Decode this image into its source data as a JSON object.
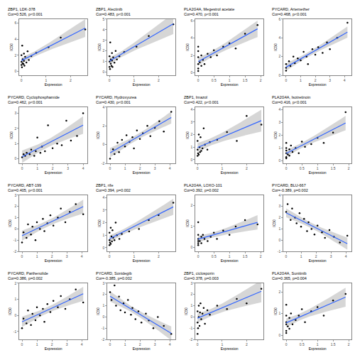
{
  "chart_data": [
    {
      "type": "scatter",
      "title": "ZBP1, LDK-378",
      "subtitle": "Cor=0.526, p<0.001",
      "xlabel": "Expression",
      "ylabel": "IC50",
      "color": "#000000",
      "marker": "circle",
      "grid": false,
      "x": [
        0,
        0,
        0,
        0.02,
        0.03,
        0.05,
        0.05,
        0.08,
        0.1,
        0.1,
        0.12,
        0.15,
        0.2,
        0.25,
        0.3,
        0.4,
        0.6,
        1.1,
        1.6,
        2.6
      ],
      "values": [
        0.8,
        1.2,
        2.0,
        0.5,
        3.2,
        1.0,
        1.5,
        0.9,
        2.2,
        1.3,
        0.7,
        1.8,
        1.1,
        2.5,
        1.4,
        1.9,
        2.3,
        3.0,
        4.2,
        5.2
      ],
      "xlim": [
        -0.1,
        2.7
      ],
      "xticks": [
        0,
        1,
        2
      ],
      "ylim": [
        -0.5,
        6.5
      ],
      "yticks": [
        0,
        2,
        4,
        6
      ]
    },
    {
      "type": "scatter",
      "title": "ZBP1, Alectinib",
      "subtitle": "Cor=0.483, p<0.001",
      "xlabel": "Expression",
      "ylabel": "IC50",
      "color": "#000000",
      "marker": "circle",
      "grid": false,
      "x": [
        0,
        0,
        0,
        0.02,
        0.03,
        0.05,
        0.05,
        0.08,
        0.1,
        0.1,
        0.12,
        0.15,
        0.2,
        0.25,
        0.3,
        0.4,
        0.6,
        1.1,
        1.6,
        2.6
      ],
      "values": [
        0.5,
        1.0,
        1.5,
        0.3,
        2.8,
        0.8,
        1.2,
        0.6,
        1.8,
        1.1,
        0.5,
        1.4,
        0.9,
        2.0,
        1.2,
        1.5,
        1.9,
        2.4,
        3.4,
        4.5
      ],
      "xlim": [
        -0.1,
        2.7
      ],
      "xticks": [
        0,
        1,
        2
      ],
      "ylim": [
        -0.3,
        5
      ],
      "yticks": [
        0,
        1,
        2,
        3,
        4,
        5
      ]
    },
    {
      "type": "scatter",
      "title": "PLA2G4A, Megestrol acetate",
      "subtitle": "Cor=0.470, p<0.001",
      "xlabel": "Expression",
      "ylabel": "IC50",
      "color": "#000000",
      "marker": "circle",
      "grid": false,
      "x": [
        0,
        0,
        0,
        0,
        0,
        0,
        0.05,
        0.1,
        0.1,
        0.15,
        0.2,
        0.3,
        0.4,
        0.5,
        0.6,
        0.8,
        1.0,
        1.2,
        1.5,
        1.9
      ],
      "values": [
        0.5,
        1.0,
        1.8,
        2.5,
        3.0,
        0.2,
        1.2,
        0.8,
        2.0,
        1.5,
        1.0,
        2.2,
        1.8,
        2.6,
        2.0,
        3.0,
        3.4,
        2.8,
        4.5,
        5.5
      ],
      "xlim": [
        -0.1,
        2.1
      ],
      "xticks": [
        0,
        0.5,
        1,
        1.5,
        2
      ],
      "ylim": [
        -0.3,
        6.2
      ],
      "yticks": [
        0,
        2,
        4,
        6
      ]
    },
    {
      "type": "scatter",
      "title": "PYCARD, Artemether",
      "subtitle": "Cor=0.468, p<0.001",
      "xlabel": "Expression",
      "ylabel": "IC50",
      "color": "#000000",
      "marker": "circle",
      "grid": false,
      "x": [
        0,
        0,
        0,
        0.2,
        0.3,
        0.5,
        0.6,
        0.8,
        1.0,
        1.2,
        1.4,
        1.5,
        1.8,
        2.0,
        2.2,
        2.5,
        2.8,
        3.0,
        3.5,
        4.2
      ],
      "values": [
        0.5,
        1.2,
        0.8,
        1.5,
        1.0,
        2.0,
        1.3,
        1.8,
        1.6,
        2.5,
        2.0,
        1.2,
        2.8,
        2.2,
        3.0,
        2.4,
        3.5,
        2.8,
        4.0,
        5.6
      ],
      "xlim": [
        -0.2,
        4.5
      ],
      "xticks": [
        0,
        1,
        2,
        3,
        4
      ],
      "ylim": [
        0,
        6
      ],
      "yticks": [
        0,
        2,
        4,
        6
      ]
    },
    {
      "type": "scatter",
      "title": "PYCARD, Cyclophosphamide",
      "subtitle": "Cor=0.462, p<0.001",
      "xlabel": "Expression",
      "ylabel": "IC50",
      "color": "#000000",
      "marker": "circle",
      "grid": false,
      "x": [
        0,
        0.1,
        0.2,
        0.3,
        0.5,
        0.6,
        0.8,
        0.9,
        1.0,
        1.2,
        1.3,
        1.5,
        1.7,
        2.0,
        2.3,
        2.6,
        2.9,
        3.2,
        3.6,
        4.0
      ],
      "values": [
        0.1,
        0.3,
        0.2,
        0.4,
        0.3,
        0.6,
        0.2,
        0.5,
        1.4,
        0.4,
        0.8,
        0.5,
        2.2,
        0.7,
        1.0,
        0.9,
        2.5,
        1.2,
        1.5,
        3.0
      ],
      "xlim": [
        -0.2,
        4.3
      ],
      "xticks": [
        0,
        1,
        2,
        3,
        4
      ],
      "ylim": [
        -0.3,
        3.4
      ],
      "yticks": [
        0,
        1,
        2,
        3
      ]
    },
    {
      "type": "scatter",
      "title": "PYCARD, Hydroxyurea",
      "subtitle": "Cor=0.430, p<0.001",
      "xlabel": "Expression",
      "ylabel": "IC50",
      "color": "#000000",
      "marker": "circle",
      "grid": false,
      "x": [
        0,
        0.2,
        0.3,
        0.5,
        0.6,
        0.8,
        1.0,
        1.1,
        1.3,
        1.5,
        1.6,
        1.8,
        2.0,
        2.2,
        2.5,
        2.7,
        3.0,
        3.3,
        3.6,
        4.1
      ],
      "values": [
        -1.5,
        -0.5,
        -1.0,
        0.2,
        -0.8,
        0.5,
        -0.2,
        1.0,
        0.3,
        0.8,
        -0.4,
        1.5,
        0.6,
        1.2,
        2.0,
        0.9,
        1.8,
        2.5,
        1.4,
        3.5
      ],
      "xlim": [
        -0.2,
        4.4
      ],
      "xticks": [
        0,
        1,
        2,
        3,
        4
      ],
      "ylim": [
        -2,
        4
      ],
      "yticks": [
        -2,
        0,
        2,
        4
      ]
    },
    {
      "type": "scatter",
      "title": "ZBP1, Imazol",
      "subtitle": "Cor=0.422, p<0.001",
      "xlabel": "Expression",
      "ylabel": "IC50",
      "color": "#000000",
      "marker": "circle",
      "grid": false,
      "x": [
        0,
        0,
        0,
        0.02,
        0.05,
        0.05,
        0.08,
        0.1,
        0.12,
        0.15,
        0.2,
        0.25,
        0.3,
        0.4,
        0.5,
        0.8,
        1.2,
        1.6,
        2.0,
        2.6
      ],
      "values": [
        0.3,
        0.8,
        1.5,
        0.5,
        2.0,
        0.4,
        1.0,
        0.6,
        1.8,
        0.7,
        0.9,
        2.5,
        1.2,
        0.8,
        1.4,
        1.6,
        2.2,
        1.5,
        3.5,
        2.8
      ],
      "xlim": [
        -0.1,
        2.7
      ],
      "xticks": [
        0,
        1,
        2
      ],
      "ylim": [
        -0.3,
        4.2
      ],
      "yticks": [
        0,
        1,
        2,
        3,
        4
      ]
    },
    {
      "type": "scatter",
      "title": "PLA2G4A, Isotretinoin",
      "subtitle": "Cor=0.416, p<0.001",
      "xlabel": "Expression",
      "ylabel": "IC50",
      "color": "#000000",
      "marker": "circle",
      "grid": false,
      "x": [
        0,
        0,
        0,
        0,
        0,
        0,
        0.05,
        0.1,
        0.1,
        0.15,
        0.2,
        0.3,
        0.4,
        0.5,
        0.6,
        0.8,
        1.0,
        1.2,
        1.5,
        1.9
      ],
      "values": [
        0.3,
        0.6,
        1.0,
        1.4,
        0.2,
        0.8,
        0.5,
        0.9,
        0.4,
        1.2,
        0.7,
        1.0,
        0.6,
        1.5,
        1.1,
        1.3,
        1.8,
        1.4,
        2.2,
        3.8
      ],
      "xlim": [
        -0.1,
        2.1
      ],
      "xticks": [
        0,
        0.5,
        1,
        1.5,
        2
      ],
      "ylim": [
        -0.2,
        4.2
      ],
      "yticks": [
        0,
        1,
        2,
        3,
        4
      ]
    },
    {
      "type": "scatter",
      "title": "PYCARD, ABT-199",
      "subtitle": "Cor=0.405, p<0.001",
      "xlabel": "Expression",
      "ylabel": "IC50",
      "color": "#000000",
      "marker": "circle",
      "grid": false,
      "x": [
        0,
        0.1,
        0.3,
        0.4,
        0.6,
        0.7,
        0.9,
        1.0,
        1.2,
        1.4,
        1.5,
        1.7,
        1.9,
        2.1,
        2.4,
        2.6,
        2.9,
        3.2,
        3.6,
        4.1
      ],
      "values": [
        -1.2,
        -0.3,
        -0.8,
        0.4,
        -0.5,
        0.2,
        -1.0,
        0.6,
        0.0,
        0.9,
        -0.2,
        0.5,
        1.2,
        0.3,
        1.0,
        1.8,
        0.6,
        1.5,
        2.2,
        1.3
      ],
      "xlim": [
        -0.2,
        4.4
      ],
      "xticks": [
        0,
        1,
        2,
        3,
        4
      ],
      "ylim": [
        -2,
        3
      ],
      "yticks": [
        -2,
        -1,
        0,
        1,
        2,
        3
      ]
    },
    {
      "type": "scatter",
      "title": "ZBP1, rife",
      "subtitle": "Cor=0.394, p=0.002",
      "xlabel": "Expression",
      "ylabel": "IC50",
      "color": "#000000",
      "marker": "circle",
      "grid": false,
      "x": [
        0,
        0,
        0,
        0.02,
        0.05,
        0.05,
        0.08,
        0.1,
        0.12,
        0.15,
        0.2,
        0.25,
        0.3,
        0.4,
        0.5,
        0.8,
        1.2,
        1.6,
        2.0,
        2.6
      ],
      "values": [
        0.2,
        0.6,
        1.2,
        0.4,
        1.6,
        0.3,
        0.9,
        0.5,
        1.4,
        0.8,
        0.6,
        2.0,
        1.0,
        0.7,
        1.1,
        1.3,
        1.5,
        2.2,
        2.6,
        3.6
      ],
      "xlim": [
        -0.1,
        2.7
      ],
      "xticks": [
        0,
        1,
        2
      ],
      "ylim": [
        -0.3,
        4.2
      ],
      "yticks": [
        0,
        1,
        2,
        3,
        4
      ]
    },
    {
      "type": "scatter",
      "title": "PLA2G4A, LOXO-101",
      "subtitle": "Cor=0.392, p=0.002",
      "xlabel": "Expression",
      "ylabel": "IC50",
      "color": "#000000",
      "marker": "circle",
      "grid": false,
      "x": [
        0,
        0,
        0,
        0,
        0,
        0,
        0.05,
        0.1,
        0.1,
        0.15,
        0.2,
        0.3,
        0.4,
        0.5,
        0.6,
        0.8,
        1.0,
        1.2,
        1.5,
        1.9
      ],
      "values": [
        0.1,
        0.3,
        0.6,
        1.2,
        0.2,
        0.4,
        0.3,
        0.5,
        0.2,
        0.6,
        0.4,
        0.3,
        0.5,
        0.7,
        0.4,
        0.8,
        0.6,
        1.0,
        1.3,
        1.1
      ],
      "xlim": [
        -0.1,
        2.1
      ],
      "xticks": [
        0,
        0.5,
        1,
        1.5,
        2
      ],
      "ylim": [
        -0.2,
        2.5
      ],
      "yticks": [
        0,
        1,
        2
      ]
    },
    {
      "type": "scatter",
      "title": "PYCARD, BLU-667",
      "subtitle": "Cor=-0.389, p=0.002",
      "xlabel": "Expression",
      "ylabel": "IC50",
      "color": "#000000",
      "marker": "circle",
      "grid": false,
      "x": [
        0,
        0.1,
        0.3,
        0.4,
        0.6,
        0.7,
        0.9,
        1.0,
        1.2,
        1.4,
        1.5,
        1.7,
        1.9,
        2.1,
        2.4,
        2.6,
        2.9,
        3.2,
        3.6,
        4.1
      ],
      "values": [
        2.5,
        3.2,
        1.8,
        2.8,
        2.0,
        1.5,
        2.4,
        1.2,
        1.9,
        0.8,
        1.6,
        1.0,
        0.5,
        1.3,
        0.7,
        0.2,
        0.9,
        0.3,
        -0.2,
        0.4
      ],
      "xlim": [
        -0.2,
        4.4
      ],
      "xticks": [
        0,
        1,
        2,
        3,
        4
      ],
      "ylim": [
        -1,
        4
      ],
      "yticks": [
        -1,
        0,
        1,
        2,
        3,
        4
      ]
    },
    {
      "type": "scatter",
      "title": "PYCARD, Parthenolide",
      "subtitle": "Cor=0.386, p=0.002",
      "xlabel": "Expression",
      "ylabel": "IC50",
      "color": "#000000",
      "marker": "circle",
      "grid": false,
      "x": [
        0,
        0.1,
        0.3,
        0.4,
        0.6,
        0.7,
        0.9,
        1.0,
        1.2,
        1.4,
        1.5,
        1.7,
        1.9,
        2.1,
        2.4,
        2.6,
        2.9,
        3.2,
        3.6,
        4.1
      ],
      "values": [
        -0.8,
        -0.2,
        -0.5,
        0.3,
        -0.6,
        0.1,
        -0.3,
        0.5,
        0.0,
        0.4,
        -0.4,
        0.7,
        0.2,
        0.9,
        0.5,
        1.2,
        0.4,
        1.0,
        1.6,
        0.8
      ],
      "xlim": [
        -0.2,
        4.4
      ],
      "xticks": [
        0,
        1,
        2,
        3,
        4
      ],
      "ylim": [
        -1.5,
        2
      ],
      "yticks": [
        -1,
        0,
        1,
        2
      ]
    },
    {
      "type": "scatter",
      "title": "PYCARD, Sonidegib",
      "subtitle": "Cor=-0.385, p=0.002",
      "xlabel": "Expression",
      "ylabel": "IC50",
      "color": "#000000",
      "marker": "circle",
      "grid": false,
      "x": [
        0,
        0.1,
        0.3,
        0.4,
        0.6,
        0.7,
        0.9,
        1.0,
        1.2,
        1.4,
        1.5,
        1.7,
        1.9,
        2.1,
        2.4,
        2.6,
        2.9,
        3.2,
        3.6,
        4.1
      ],
      "values": [
        2.2,
        1.5,
        2.8,
        1.0,
        1.8,
        0.6,
        1.2,
        0.4,
        1.5,
        0.2,
        0.8,
        -0.2,
        0.5,
        -0.5,
        0.3,
        -0.3,
        -1.0,
        0.0,
        -0.8,
        -1.5
      ],
      "xlim": [
        -0.2,
        4.4
      ],
      "xticks": [
        0,
        1,
        2,
        3,
        4
      ],
      "ylim": [
        -2,
        3
      ],
      "yticks": [
        -2,
        -1,
        0,
        1,
        2,
        3
      ]
    },
    {
      "type": "scatter",
      "title": "ZBP1, ciclosporin",
      "subtitle": "Cor=0.378, p=0.003",
      "xlabel": "Expression",
      "ylabel": "IC50",
      "color": "#000000",
      "marker": "circle",
      "grid": false,
      "x": [
        0,
        0,
        0,
        0.02,
        0.05,
        0.05,
        0.08,
        0.1,
        0.12,
        0.15,
        0.2,
        0.25,
        0.3,
        0.4,
        0.5,
        0.8,
        1.2,
        1.6,
        2.0,
        2.6
      ],
      "values": [
        -1.5,
        -0.5,
        0.5,
        -1.0,
        1.0,
        0.0,
        -0.8,
        0.4,
        1.2,
        -0.2,
        0.3,
        0.8,
        -0.6,
        0.6,
        0.2,
        1.0,
        0.7,
        1.6,
        1.2,
        2.5
      ],
      "xlim": [
        -0.1,
        2.7
      ],
      "xticks": [
        0,
        1,
        2
      ],
      "ylim": [
        -2,
        3
      ],
      "yticks": [
        -2,
        -1,
        0,
        1,
        2,
        3
      ]
    },
    {
      "type": "scatter",
      "title": "PLA2G4A, Sunitinib",
      "subtitle": "Cor=0.365, p=0.004",
      "xlabel": "Expression",
      "ylabel": "IC50",
      "color": "#000000",
      "marker": "circle",
      "grid": false,
      "x": [
        0,
        0,
        0,
        0,
        0,
        0,
        0.05,
        0.1,
        0.1,
        0.15,
        0.2,
        0.3,
        0.4,
        0.5,
        0.6,
        0.8,
        1.0,
        1.2,
        1.5,
        1.9
      ],
      "values": [
        0.2,
        0.5,
        0.9,
        1.4,
        0.1,
        0.6,
        0.4,
        0.8,
        0.3,
        1.0,
        0.5,
        0.7,
        0.9,
        1.2,
        0.6,
        1.1,
        1.3,
        0.9,
        1.6,
        1.9
      ],
      "xlim": [
        -0.1,
        2.1
      ],
      "xticks": [
        0,
        0.5,
        1,
        1.5,
        2
      ],
      "ylim": [
        -0.2,
        2.4
      ],
      "yticks": [
        0,
        1,
        2
      ]
    }
  ]
}
